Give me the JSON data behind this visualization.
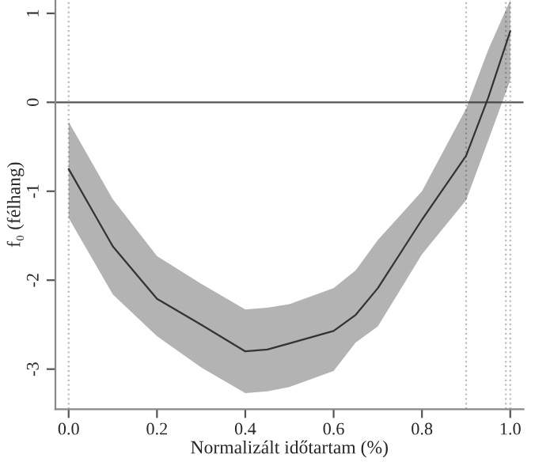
{
  "chart_data": {
    "type": "line",
    "xlabel": "Normalizált időtartam (%)",
    "ylabel": "f₀ (félhang)",
    "x": [
      0,
      0.1,
      0.2,
      0.3,
      0.4,
      0.45,
      0.5,
      0.6,
      0.65,
      0.7,
      0.8,
      0.9,
      0.95,
      1.0
    ],
    "series": [
      {
        "color": "#333333",
        "values": [
          -0.75,
          -1.62,
          -2.21,
          -2.5,
          -2.8,
          -2.78,
          -2.71,
          -2.57,
          -2.39,
          -2.09,
          -1.32,
          -0.6,
          0.05,
          0.8
        ],
        "lower": [
          -1.3,
          -2.16,
          -2.63,
          -2.98,
          -3.27,
          -3.25,
          -3.2,
          -3.02,
          -2.7,
          -2.52,
          -1.71,
          -1.1,
          -0.43,
          0.25
        ],
        "upper": [
          -0.22,
          -1.09,
          -1.73,
          -2.04,
          -2.33,
          -2.31,
          -2.27,
          -2.09,
          -1.89,
          -1.55,
          -1.0,
          -0.07,
          0.59,
          1.15
        ]
      }
    ],
    "xlim": [
      -0.03,
      1.03
    ],
    "ylim": [
      -3.45,
      1.15
    ],
    "xticks": [
      {
        "value": 0,
        "label": "0.0"
      },
      0.2,
      0.4,
      0.6,
      0.8,
      {
        "value": 1,
        "label": "1.0"
      }
    ],
    "yticks": [
      -3,
      -2,
      -1,
      0,
      1
    ],
    "ref_lines": [
      {
        "axis": "y",
        "value": 0,
        "color": "#555555",
        "line_style": "solid"
      },
      {
        "axis": "x",
        "value": 0,
        "color": "#bbbbbb",
        "line_style": "dotted"
      },
      {
        "axis": "x",
        "value": 0.9,
        "color": "#bbbbbb",
        "line_style": "dotted"
      },
      {
        "axis": "x",
        "value": 0.99,
        "color": "#bbbbbb",
        "line_style": "dotted"
      },
      {
        "axis": "x",
        "value": 1.0,
        "color": "#bbbbbb",
        "line_style": "dotted"
      }
    ],
    "grid": false,
    "legend": false
  }
}
